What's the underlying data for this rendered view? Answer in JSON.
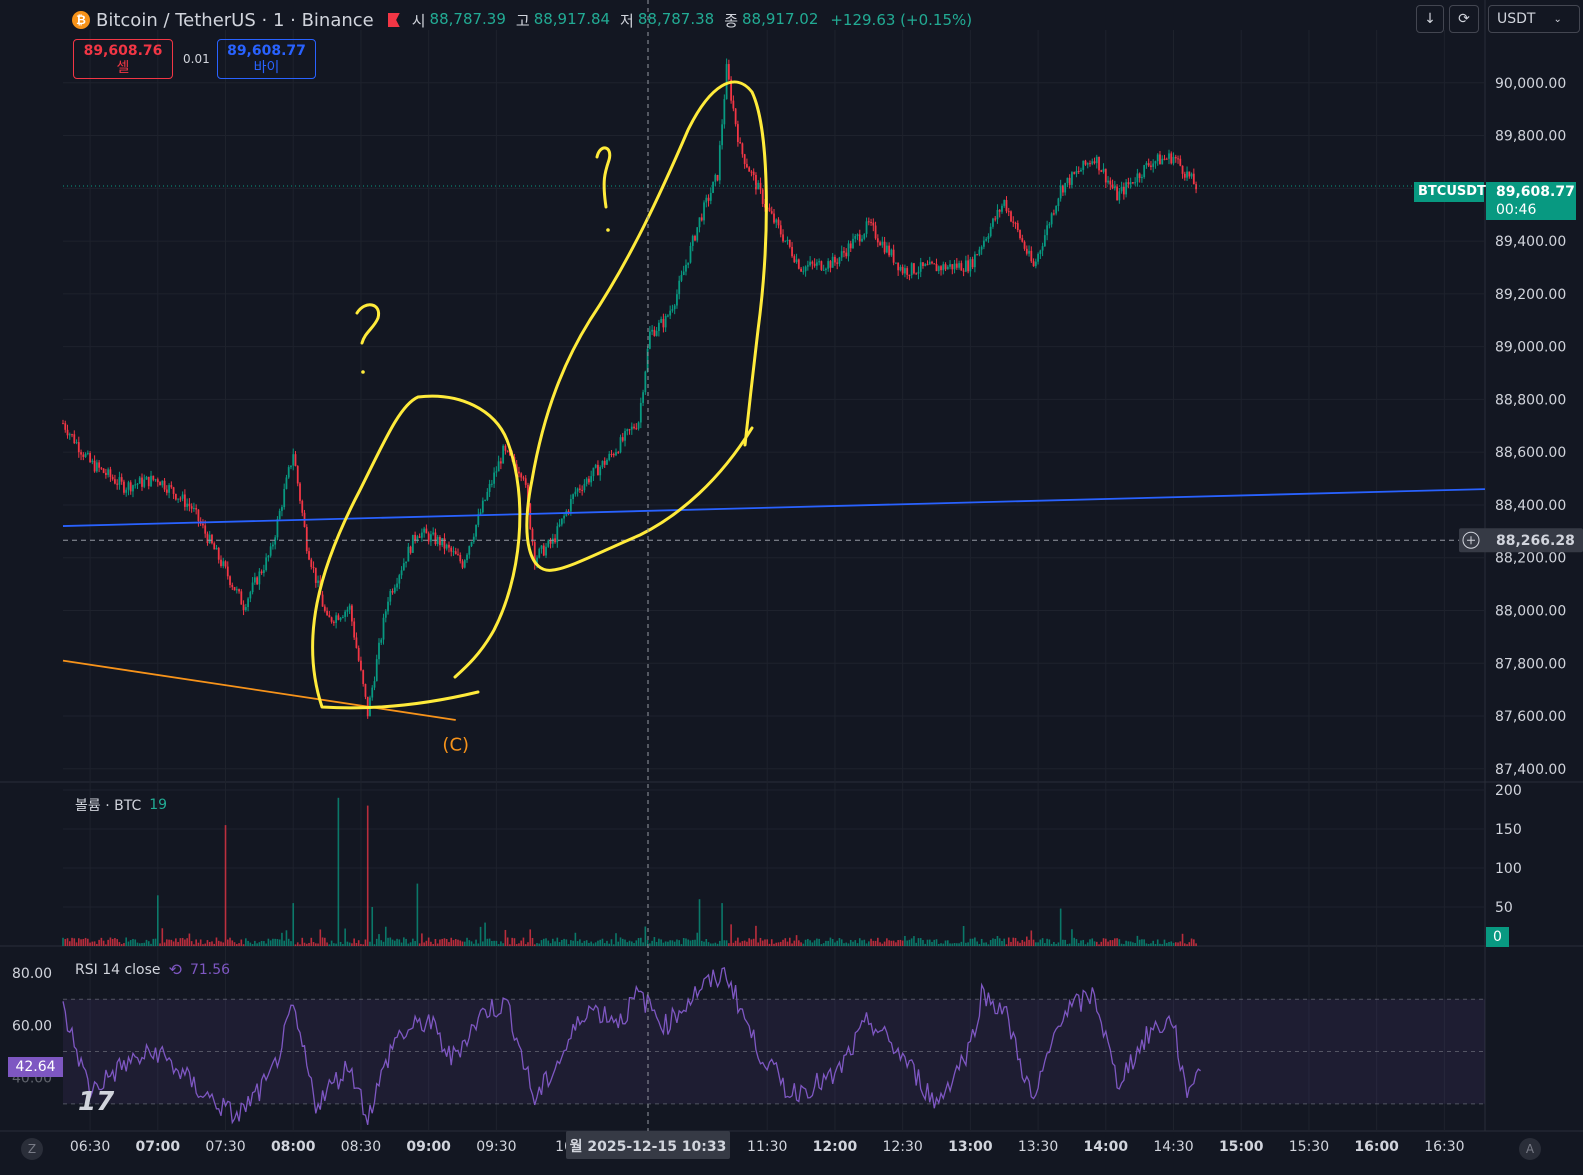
{
  "header": {
    "symbol_title": "Bitcoin / TetherUS · 1 · Binance",
    "ohlc": [
      {
        "k": "시",
        "v": "88,787.39"
      },
      {
        "k": "고",
        "v": "88,917.84"
      },
      {
        "k": "저",
        "v": "88,787.38"
      },
      {
        "k": "종",
        "v": "88,917.02"
      }
    ],
    "change": "+129.63 (+0.15%)",
    "currency": "USDT",
    "icons": [
      "bitcoin-icon",
      "flag-icon",
      "download-icon",
      "sync-icon",
      "chevron-down-icon"
    ]
  },
  "trade": {
    "sell_price": "89,608.76",
    "sell_label": "셀",
    "spread": "0.01",
    "buy_price": "89,608.77",
    "buy_label": "바이"
  },
  "volume_pane": {
    "title": "볼륨 · BTC",
    "value": "19",
    "zero_label": "0"
  },
  "rsi_pane": {
    "title": "RSI 14 close",
    "value": "71.56",
    "current": "42.64"
  },
  "crosshair": {
    "price": "88,266.28",
    "time": "월 2025-12-15   10:33"
  },
  "last_price": {
    "symbol": "BTCUSDT",
    "price": "89,608.77",
    "countdown": "00:46"
  },
  "annotations": {
    "wave_label": "(C)"
  },
  "corner_buttons": {
    "left": "Z",
    "right": "A"
  },
  "colors": {
    "background": "#131722",
    "up": "#089981",
    "down": "#f23645",
    "trendline": "#2962ff",
    "orange_line": "#f7931a",
    "marker": "#ffeb3b",
    "rsi": "#7e57c2"
  },
  "chart_data": [
    {
      "type": "candlestick",
      "title": "Bitcoin / TetherUS · 1 · Binance",
      "ylim": [
        87350,
        90200
      ],
      "yticks": [
        "87,400.00",
        "87,600.00",
        "87,800.00",
        "88,000.00",
        "88,200.00",
        "88,400.00",
        "88,600.00",
        "88,800.00",
        "89,000.00",
        "89,200.00",
        "89,400.00",
        "89,600.00",
        "89,800.00",
        "90,000.00"
      ],
      "x_ticks": [
        "06:30",
        "07:00",
        "07:30",
        "08:00",
        "08:30",
        "09:00",
        "09:30",
        "10",
        "11:30",
        "12:00",
        "12:30",
        "13:00",
        "13:30",
        "14:00",
        "14:30",
        "15:00",
        "15:30",
        "16:00",
        "16:30"
      ],
      "bold_ticks": [
        "07:00",
        "08:00",
        "09:00",
        "12:00",
        "13:00",
        "14:00",
        "15:00",
        "16:00"
      ],
      "time_range": [
        "06:18",
        "16:48"
      ],
      "price_path": [
        {
          "t": "06:18",
          "p": 88710
        },
        {
          "t": "06:30",
          "p": 88560
        },
        {
          "t": "06:45",
          "p": 88470
        },
        {
          "t": "07:00",
          "p": 88500
        },
        {
          "t": "07:15",
          "p": 88390
        },
        {
          "t": "07:30",
          "p": 88150
        },
        {
          "t": "07:38",
          "p": 88020
        },
        {
          "t": "07:50",
          "p": 88220
        },
        {
          "t": "08:00",
          "p": 88600
        },
        {
          "t": "08:06",
          "p": 88250
        },
        {
          "t": "08:15",
          "p": 87960
        },
        {
          "t": "08:25",
          "p": 88010
        },
        {
          "t": "08:33",
          "p": 87610
        },
        {
          "t": "08:42",
          "p": 88050
        },
        {
          "t": "08:55",
          "p": 88300
        },
        {
          "t": "09:05",
          "p": 88260
        },
        {
          "t": "09:15",
          "p": 88180
        },
        {
          "t": "09:25",
          "p": 88420
        },
        {
          "t": "09:33",
          "p": 88600
        },
        {
          "t": "09:42",
          "p": 88520
        },
        {
          "t": "09:47",
          "p": 88200
        },
        {
          "t": "09:55",
          "p": 88260
        },
        {
          "t": "10:05",
          "p": 88450
        },
        {
          "t": "10:20",
          "p": 88580
        },
        {
          "t": "10:33",
          "p": 88720
        },
        {
          "t": "10:38",
          "p": 89050
        },
        {
          "t": "10:45",
          "p": 89100
        },
        {
          "t": "10:50",
          "p": 89200
        },
        {
          "t": "11:00",
          "p": 89480
        },
        {
          "t": "11:08",
          "p": 89650
        },
        {
          "t": "11:12",
          "p": 90050
        },
        {
          "t": "11:18",
          "p": 89750
        },
        {
          "t": "11:30",
          "p": 89520
        },
        {
          "t": "11:45",
          "p": 89300
        },
        {
          "t": "12:00",
          "p": 89320
        },
        {
          "t": "12:15",
          "p": 89460
        },
        {
          "t": "12:30",
          "p": 89290
        },
        {
          "t": "12:45",
          "p": 89300
        },
        {
          "t": "13:00",
          "p": 89310
        },
        {
          "t": "13:15",
          "p": 89550
        },
        {
          "t": "13:28",
          "p": 89300
        },
        {
          "t": "13:40",
          "p": 89600
        },
        {
          "t": "13:55",
          "p": 89720
        },
        {
          "t": "14:05",
          "p": 89570
        },
        {
          "t": "14:20",
          "p": 89700
        },
        {
          "t": "14:30",
          "p": 89720
        },
        {
          "t": "14:40",
          "p": 89608
        }
      ],
      "horizontal_lines": [
        {
          "price": 89608.77,
          "style": "dotted"
        },
        {
          "price": 88266.28,
          "style": "dashed"
        }
      ],
      "trendlines": [
        {
          "from": {
            "t": "06:18",
            "p": 88320
          },
          "to": {
            "t": "16:48",
            "p": 88460
          },
          "color": "#2962ff"
        },
        {
          "from": {
            "t": "06:18",
            "p": 87810
          },
          "to": {
            "t": "09:12",
            "p": 87585
          },
          "color": "#f7931a"
        }
      ],
      "annotations": [
        {
          "text": "(C)",
          "t": "09:12",
          "p": 87470
        }
      ]
    },
    {
      "type": "bar",
      "title": "볼륨 · BTC",
      "ylim": [
        0,
        200
      ],
      "yticks": [
        "200",
        "150",
        "100",
        "50"
      ],
      "spikes": [
        {
          "t": "07:00",
          "v": 65
        },
        {
          "t": "07:30",
          "v": 155
        },
        {
          "t": "08:00",
          "v": 55
        },
        {
          "t": "08:20",
          "v": 190
        },
        {
          "t": "08:33",
          "v": 180
        },
        {
          "t": "08:35",
          "v": 50
        },
        {
          "t": "08:55",
          "v": 80
        },
        {
          "t": "11:00",
          "v": 60
        },
        {
          "t": "11:10",
          "v": 55
        },
        {
          "t": "13:40",
          "v": 48
        }
      ]
    },
    {
      "type": "line",
      "title": "RSI 14 close",
      "ylim": [
        20,
        85
      ],
      "yticks": [
        "80.00",
        "60.00"
      ],
      "bands": [
        70,
        50,
        30
      ],
      "series": [
        {
          "name": "RSI 14 close",
          "points": [
            {
              "t": "06:18",
              "v": 66
            },
            {
              "t": "06:30",
              "v": 35
            },
            {
              "t": "06:45",
              "v": 45
            },
            {
              "t": "07:00",
              "v": 50
            },
            {
              "t": "07:20",
              "v": 34
            },
            {
              "t": "07:35",
              "v": 25
            },
            {
              "t": "07:50",
              "v": 40
            },
            {
              "t": "08:00",
              "v": 66
            },
            {
              "t": "08:10",
              "v": 30
            },
            {
              "t": "08:25",
              "v": 45
            },
            {
              "t": "08:33",
              "v": 25
            },
            {
              "t": "08:45",
              "v": 55
            },
            {
              "t": "09:00",
              "v": 62
            },
            {
              "t": "09:10",
              "v": 47
            },
            {
              "t": "09:25",
              "v": 66
            },
            {
              "t": "09:35",
              "v": 68
            },
            {
              "t": "09:47",
              "v": 31
            },
            {
              "t": "10:00",
              "v": 50
            },
            {
              "t": "10:10",
              "v": 67
            },
            {
              "t": "10:25",
              "v": 62
            },
            {
              "t": "10:33",
              "v": 72
            },
            {
              "t": "10:45",
              "v": 60
            },
            {
              "t": "11:00",
              "v": 74
            },
            {
              "t": "11:12",
              "v": 80
            },
            {
              "t": "11:25",
              "v": 52
            },
            {
              "t": "11:40",
              "v": 34
            },
            {
              "t": "12:00",
              "v": 40
            },
            {
              "t": "12:15",
              "v": 62
            },
            {
              "t": "12:30",
              "v": 48
            },
            {
              "t": "12:45",
              "v": 30
            },
            {
              "t": "13:00",
              "v": 52
            },
            {
              "t": "13:05",
              "v": 72
            },
            {
              "t": "13:15",
              "v": 66
            },
            {
              "t": "13:28",
              "v": 30
            },
            {
              "t": "13:40",
              "v": 64
            },
            {
              "t": "13:55",
              "v": 72
            },
            {
              "t": "14:05",
              "v": 38
            },
            {
              "t": "14:20",
              "v": 58
            },
            {
              "t": "14:30",
              "v": 62
            },
            {
              "t": "14:35",
              "v": 35
            },
            {
              "t": "14:42",
              "v": 42.64
            }
          ]
        }
      ]
    }
  ]
}
